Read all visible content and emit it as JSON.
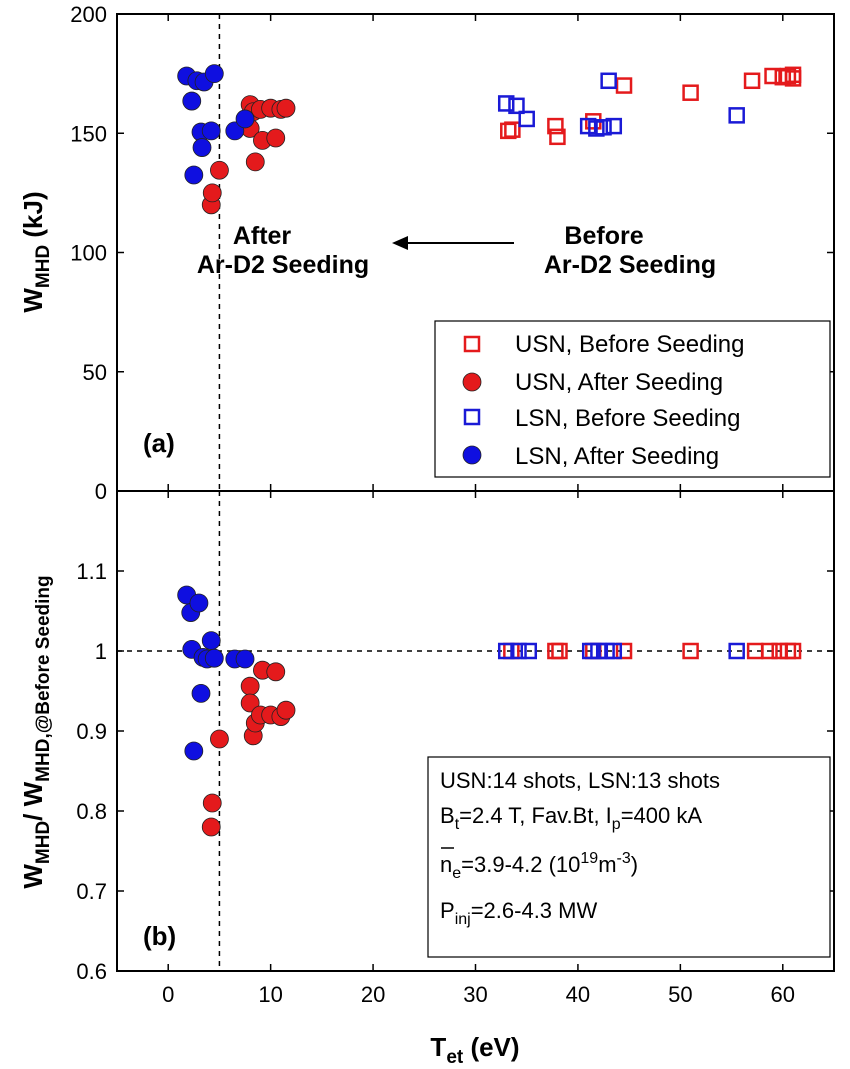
{
  "chart_data": [
    {
      "panel": "a",
      "type": "scatter",
      "panel_label": "(a)",
      "xlabel": "T",
      "xlabel_sub": "et",
      "xlabel_suffix": " (eV)",
      "ylabel": "W",
      "ylabel_sub": "MHD",
      "ylabel_suffix": " (kJ)",
      "xlim": [
        -5,
        65
      ],
      "ylim": [
        0,
        200
      ],
      "xticks": [
        0,
        10,
        20,
        30,
        40,
        50,
        60
      ],
      "yticks": [
        0,
        50,
        100,
        150,
        200
      ],
      "vline_x": 5,
      "annotations": {
        "after_line1": "After",
        "after_line2": "Ar-D2 Seeding",
        "before_line1": "Before",
        "before_line2": "Ar-D2 Seeding"
      },
      "legend": {
        "position": "bottom-right",
        "entries": [
          "USN, Before Seeding",
          "USN, After Seeding",
          "LSN, Before Seeding",
          "LSN, After Seeding"
        ]
      },
      "series": [
        {
          "name": "USN, Before Seeding",
          "marker": "open-square",
          "color": "#e41a1c",
          "points": [
            [
              33.2,
              151
            ],
            [
              33.6,
              151.5
            ],
            [
              37.8,
              153
            ],
            [
              38.0,
              148.5
            ],
            [
              41.5,
              155
            ],
            [
              44.5,
              170
            ],
            [
              51.0,
              167
            ],
            [
              57.0,
              172
            ],
            [
              59.0,
              174
            ],
            [
              60.0,
              173.5
            ],
            [
              60.5,
              174
            ],
            [
              61.0,
              174.5
            ],
            [
              61.0,
              173
            ]
          ]
        },
        {
          "name": "USN, After Seeding",
          "marker": "filled-circle",
          "color": "#e41a1c",
          "points": [
            [
              4.2,
              120
            ],
            [
              4.3,
              125
            ],
            [
              5.0,
              134.5
            ],
            [
              8.0,
              162
            ],
            [
              8.0,
              152
            ],
            [
              8.3,
              159
            ],
            [
              8.5,
              138
            ],
            [
              9.0,
              160
            ],
            [
              9.2,
              147
            ],
            [
              10.0,
              160.5
            ],
            [
              10.5,
              148
            ],
            [
              11.0,
              160
            ],
            [
              11.5,
              160.5
            ]
          ]
        },
        {
          "name": "LSN, Before Seeding",
          "marker": "open-square",
          "color": "#1a1ad6",
          "points": [
            [
              33.0,
              162.5
            ],
            [
              34.0,
              161.5
            ],
            [
              35.0,
              156
            ],
            [
              41.0,
              153
            ],
            [
              41.8,
              152
            ],
            [
              42.5,
              152.5
            ],
            [
              43.0,
              172
            ],
            [
              43.5,
              153
            ],
            [
              55.5,
              157.5
            ]
          ]
        },
        {
          "name": "LSN, After Seeding",
          "marker": "filled-circle",
          "color": "#0f0fe0",
          "points": [
            [
              1.8,
              174
            ],
            [
              2.3,
              163.5
            ],
            [
              2.5,
              132.5
            ],
            [
              2.8,
              172
            ],
            [
              3.2,
              150.5
            ],
            [
              3.3,
              144
            ],
            [
              3.5,
              171.5
            ],
            [
              4.2,
              151
            ],
            [
              4.5,
              175
            ],
            [
              6.5,
              151
            ],
            [
              7.5,
              156
            ]
          ]
        }
      ]
    },
    {
      "panel": "b",
      "type": "scatter",
      "panel_label": "(b)",
      "xlabel": "T",
      "xlabel_sub": "et",
      "xlabel_suffix": " (eV)",
      "ylabel_a": "W",
      "ylabel_a_sub": "MHD",
      "ylabel_b": "/ W",
      "ylabel_b_sub": "MHD,@Before Seeding",
      "xlim": [
        -5,
        65
      ],
      "ylim": [
        0.6,
        1.2
      ],
      "xticks": [
        0,
        10,
        20,
        30,
        40,
        50,
        60
      ],
      "yticks": [
        0.6,
        0.7,
        0.8,
        0.9,
        1,
        1.1
      ],
      "ytick_labels": [
        "0.6",
        "0.7",
        "0.8",
        "0.9",
        "1",
        "1.1"
      ],
      "hline_y": 1.0,
      "vline_x": 5,
      "info_box": {
        "line1": "USN:14 shots, LSN:13 shots",
        "line2_b": "B",
        "line2_b_sub": "t",
        "line2_mid": "=2.4 T, Fav.Bt, I",
        "line2_i_sub": "p",
        "line2_end": "=400 kA",
        "line3_n": "n",
        "line3_n_sub": "e",
        "line3_mid": "=3.9-4.2 (10",
        "line3_sup1": "19",
        "line3_m": "m",
        "line3_sup2": "-3",
        "line3_end": ")",
        "line4_p": "P",
        "line4_p_sub": "inj",
        "line4_end": "=2.6-4.3 MW"
      },
      "series": [
        {
          "name": "USN, Before Seeding",
          "marker": "open-square",
          "color": "#e41a1c",
          "points": [
            [
              33.5,
              1
            ],
            [
              37.8,
              1
            ],
            [
              38.2,
              1
            ],
            [
              41.5,
              1
            ],
            [
              44.5,
              1
            ],
            [
              51.0,
              1
            ],
            [
              57.3,
              1
            ],
            [
              58.7,
              1
            ],
            [
              59.7,
              1
            ],
            [
              60.5,
              1
            ],
            [
              61.0,
              1
            ]
          ]
        },
        {
          "name": "USN, After Seeding",
          "marker": "filled-circle",
          "color": "#e41a1c",
          "points": [
            [
              4.2,
              0.78
            ],
            [
              4.3,
              0.81
            ],
            [
              5.0,
              0.89
            ],
            [
              8.0,
              0.956
            ],
            [
              8.0,
              0.935
            ],
            [
              8.3,
              0.894
            ],
            [
              8.5,
              0.91
            ],
            [
              9.0,
              0.92
            ],
            [
              9.2,
              0.976
            ],
            [
              10.0,
              0.92
            ],
            [
              10.5,
              0.974
            ],
            [
              11.0,
              0.918
            ],
            [
              11.5,
              0.926
            ]
          ]
        },
        {
          "name": "LSN, Before Seeding",
          "marker": "open-square",
          "color": "#1a1ad6",
          "points": [
            [
              33.0,
              1
            ],
            [
              34.2,
              1
            ],
            [
              35.2,
              1
            ],
            [
              41.2,
              1
            ],
            [
              42.0,
              1
            ],
            [
              42.8,
              1
            ],
            [
              43.5,
              1
            ],
            [
              55.5,
              1
            ]
          ]
        },
        {
          "name": "LSN, After Seeding",
          "marker": "filled-circle",
          "color": "#0f0fe0",
          "points": [
            [
              1.8,
              1.07
            ],
            [
              2.2,
              1.048
            ],
            [
              2.3,
              1.002
            ],
            [
              2.5,
              0.875
            ],
            [
              3.0,
              1.06
            ],
            [
              3.2,
              0.947
            ],
            [
              3.4,
              0.992
            ],
            [
              3.8,
              0.99
            ],
            [
              4.2,
              1.013
            ],
            [
              4.5,
              0.991
            ],
            [
              6.5,
              0.99
            ],
            [
              7.5,
              0.99
            ]
          ]
        }
      ]
    }
  ]
}
